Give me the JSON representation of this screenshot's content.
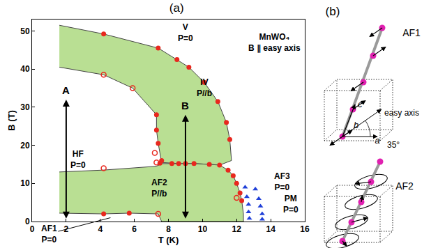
{
  "chart_data": {
    "type": "scatter",
    "title": "(a)",
    "x_label": "T (K)",
    "y_label": "B (T)",
    "xlim": [
      0,
      16
    ],
    "xticks": [
      0,
      2,
      4,
      6,
      8,
      10,
      12,
      14,
      16
    ],
    "ylim": [
      0,
      53
    ],
    "yticks": [
      0,
      10,
      20,
      30,
      40,
      50
    ],
    "grid": false,
    "regions": [
      {
        "color": "#b9df93",
        "x": [
          1.6,
          4.2,
          7.4,
          8.5,
          9.2,
          10.1,
          10.9,
          11.4,
          11.6,
          11.7,
          11.0,
          10.4,
          9.5,
          8.6,
          7.6,
          7.4,
          7.3,
          7.3,
          5.9,
          4.2,
          1.6
        ],
        "y": [
          51.5,
          49.2,
          45.5,
          42.5,
          40.5,
          36.5,
          31.5,
          26,
          21.5,
          16,
          14.8,
          15,
          15.2,
          15.2,
          15.5,
          20.5,
          24,
          28,
          35,
          38.5,
          40.5
        ]
      },
      {
        "color": "#b9df93",
        "x": [
          1.6,
          4.2,
          7.3,
          7.6,
          8.6,
          9.5,
          10.4,
          11.0,
          11.5,
          11.8,
          12.0,
          12.2,
          12.3,
          12.4,
          12.4,
          7.6,
          7.4,
          5.7,
          4.2,
          1.6
        ],
        "y": [
          13,
          13.5,
          14.5,
          15.2,
          15.2,
          15.2,
          15,
          14.8,
          13.5,
          12,
          10,
          7.5,
          5.5,
          2,
          0,
          0,
          2,
          2.2,
          2,
          2.2
        ]
      }
    ],
    "series": [
      {
        "marker": "circle",
        "color": "#e8281e",
        "x": [
          4.2,
          7.4,
          8.5,
          9.2,
          10.1,
          10.9,
          11.4,
          11.6,
          7.3,
          7.3,
          7.4,
          7.6,
          7.5,
          8.2,
          8.6,
          9.0,
          9.5,
          10.4,
          11.0,
          11.5,
          11.8,
          12.0,
          12.2,
          12.3,
          4.2,
          5.7
        ],
        "values": [
          49.2,
          45.5,
          42.5,
          40.5,
          36.5,
          31.5,
          26,
          21.5,
          28,
          24,
          20.5,
          16,
          15.3,
          15.2,
          15.2,
          15.2,
          15.2,
          15,
          14.8,
          13.5,
          12,
          10,
          7.5,
          5.5,
          2,
          2.2
        ]
      },
      {
        "marker": "circle-open",
        "color": "#e8281e",
        "x": [
          4.2,
          5.9,
          7.2,
          4.2,
          7.3,
          12.0,
          7.4
        ],
        "values": [
          38.5,
          35,
          18,
          14,
          15.5,
          6.2,
          2
        ]
      },
      {
        "marker": "triangle-up",
        "color": "#2040d8",
        "x": [
          12.5,
          12.6,
          12.7,
          12.7,
          12.75,
          13.1,
          13.3,
          13.4,
          13.5,
          13.5
        ],
        "values": [
          9,
          6.5,
          4.5,
          2.5,
          0.8,
          8.5,
          6,
          4,
          2,
          0.6
        ]
      }
    ],
    "arrows": [
      {
        "label": "A",
        "x": 2,
        "y": [
          0.5,
          32
        ]
      },
      {
        "label": "B",
        "x": 9,
        "y": [
          0.5,
          28
        ]
      }
    ],
    "annotations": [
      {
        "text": [
          "V",
          "P=0"
        ],
        "x": 9.0,
        "y": 49.5
      },
      {
        "text": [
          "MnWO₄",
          "B ∥ easy axis"
        ],
        "x": 14.2,
        "y": 47
      },
      {
        "text": [
          "IV",
          "P//b"
        ],
        "x": 10.1,
        "y": 35
      },
      {
        "text": [
          "HF",
          "P=0"
        ],
        "x": 2.7,
        "y": 16.3
      },
      {
        "text": [
          "AF2",
          "P//b"
        ],
        "x": 7.45,
        "y": 8.7
      },
      {
        "text": [
          "AF3",
          "P=0"
        ],
        "x": 14.65,
        "y": 10.5
      },
      {
        "text": [
          "PM",
          "P=0"
        ],
        "x": 15.2,
        "y": 4.5
      },
      {
        "text": [
          "AF1",
          "P=0"
        ],
        "x": 1.0,
        "y": -3.2,
        "arrow_to": [
          4.6,
          1.0
        ]
      }
    ]
  },
  "diagram": {
    "label": "(b)",
    "color": "#e020b0",
    "structures": [
      {
        "label": "AF1",
        "axis_labels": [
          "a",
          "b",
          "c"
        ],
        "easy_axis": "easy axis",
        "angle": "35°"
      },
      {
        "label": "AF2"
      }
    ]
  }
}
